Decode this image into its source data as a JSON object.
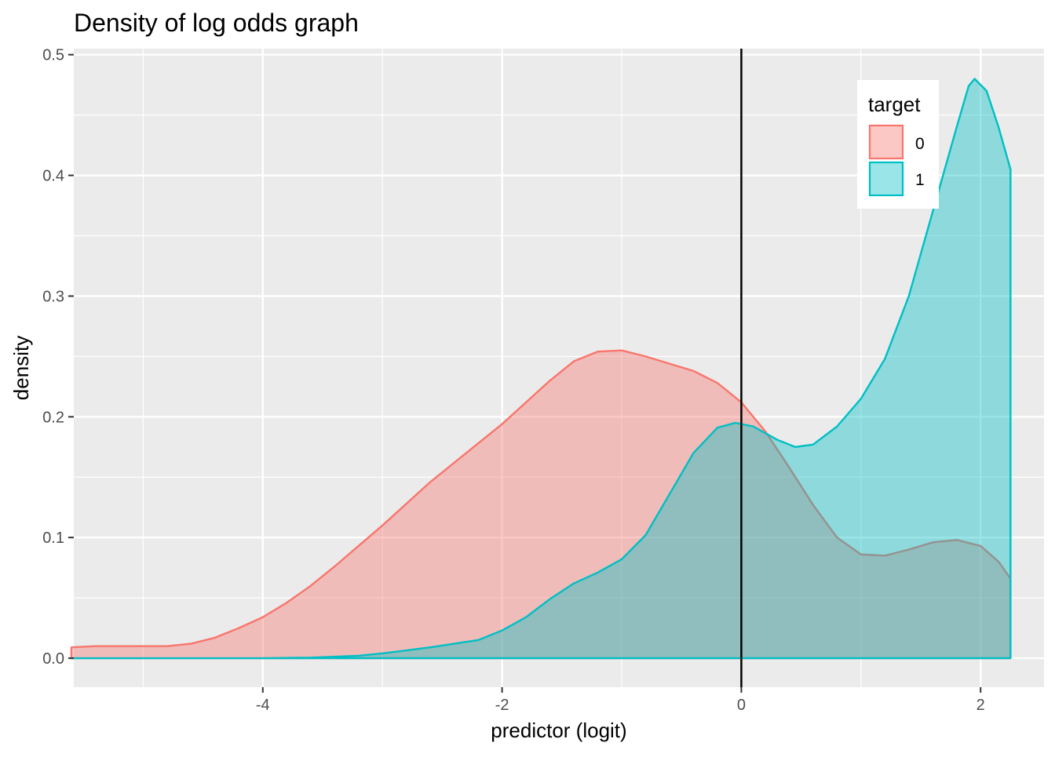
{
  "chart_data": {
    "type": "area",
    "title": "Density of log odds graph",
    "xlabel": "predictor (logit)",
    "ylabel": "density",
    "xlim": [
      -5.58,
      2.53
    ],
    "ylim": [
      -0.024,
      0.505
    ],
    "x_ticks": [
      -4,
      -2,
      0,
      2
    ],
    "x_tick_labels": [
      "-4",
      "-2",
      "0",
      "2"
    ],
    "y_ticks": [
      0.0,
      0.1,
      0.2,
      0.3,
      0.4,
      0.5
    ],
    "y_tick_labels": [
      "0.0",
      "0.1",
      "0.2",
      "0.3",
      "0.4",
      "0.5"
    ],
    "grid": true,
    "vline_x": 0,
    "legend": {
      "title": "target",
      "placement": "top-right",
      "entries": [
        "0",
        "1"
      ]
    },
    "series": [
      {
        "name": "0",
        "stroke": "#F8766D",
        "fill": "#F8766D",
        "points": [
          [
            -5.6,
            0.0
          ],
          [
            -5.6,
            0.009
          ],
          [
            -5.4,
            0.01
          ],
          [
            -5.2,
            0.01
          ],
          [
            -5.0,
            0.01
          ],
          [
            -4.8,
            0.01
          ],
          [
            -4.6,
            0.012
          ],
          [
            -4.4,
            0.017
          ],
          [
            -4.2,
            0.025
          ],
          [
            -4.0,
            0.034
          ],
          [
            -3.8,
            0.046
          ],
          [
            -3.6,
            0.06
          ],
          [
            -3.4,
            0.076
          ],
          [
            -3.2,
            0.093
          ],
          [
            -3.0,
            0.11
          ],
          [
            -2.8,
            0.128
          ],
          [
            -2.6,
            0.146
          ],
          [
            -2.4,
            0.162
          ],
          [
            -2.2,
            0.178
          ],
          [
            -2.0,
            0.194
          ],
          [
            -1.8,
            0.212
          ],
          [
            -1.6,
            0.23
          ],
          [
            -1.4,
            0.246
          ],
          [
            -1.2,
            0.254
          ],
          [
            -1.0,
            0.255
          ],
          [
            -0.8,
            0.25
          ],
          [
            -0.6,
            0.244
          ],
          [
            -0.4,
            0.238
          ],
          [
            -0.2,
            0.228
          ],
          [
            0.0,
            0.212
          ],
          [
            0.2,
            0.188
          ],
          [
            0.4,
            0.158
          ],
          [
            0.6,
            0.127
          ],
          [
            0.8,
            0.1
          ],
          [
            1.0,
            0.086
          ],
          [
            1.2,
            0.085
          ],
          [
            1.4,
            0.09
          ],
          [
            1.6,
            0.096
          ],
          [
            1.8,
            0.098
          ],
          [
            2.0,
            0.093
          ],
          [
            2.15,
            0.08
          ],
          [
            2.25,
            0.066
          ],
          [
            2.25,
            0.0
          ]
        ]
      },
      {
        "name": "1",
        "stroke": "#00BFC4",
        "fill": "#00BFC4",
        "points": [
          [
            -5.6,
            0.0
          ],
          [
            -4.0,
            0.0
          ],
          [
            -3.6,
            0.0005
          ],
          [
            -3.2,
            0.002
          ],
          [
            -3.0,
            0.004
          ],
          [
            -2.6,
            0.009
          ],
          [
            -2.2,
            0.015
          ],
          [
            -2.0,
            0.023
          ],
          [
            -1.8,
            0.034
          ],
          [
            -1.6,
            0.049
          ],
          [
            -1.4,
            0.062
          ],
          [
            -1.2,
            0.071
          ],
          [
            -1.0,
            0.082
          ],
          [
            -0.8,
            0.102
          ],
          [
            -0.6,
            0.136
          ],
          [
            -0.4,
            0.17
          ],
          [
            -0.2,
            0.191
          ],
          [
            -0.05,
            0.195
          ],
          [
            0.1,
            0.192
          ],
          [
            0.3,
            0.181
          ],
          [
            0.45,
            0.175
          ],
          [
            0.6,
            0.177
          ],
          [
            0.8,
            0.192
          ],
          [
            1.0,
            0.215
          ],
          [
            1.2,
            0.248
          ],
          [
            1.4,
            0.3
          ],
          [
            1.6,
            0.37
          ],
          [
            1.8,
            0.44
          ],
          [
            1.9,
            0.474
          ],
          [
            1.95,
            0.48
          ],
          [
            2.05,
            0.47
          ],
          [
            2.15,
            0.44
          ],
          [
            2.25,
            0.405
          ],
          [
            2.25,
            0.0
          ]
        ]
      }
    ]
  }
}
